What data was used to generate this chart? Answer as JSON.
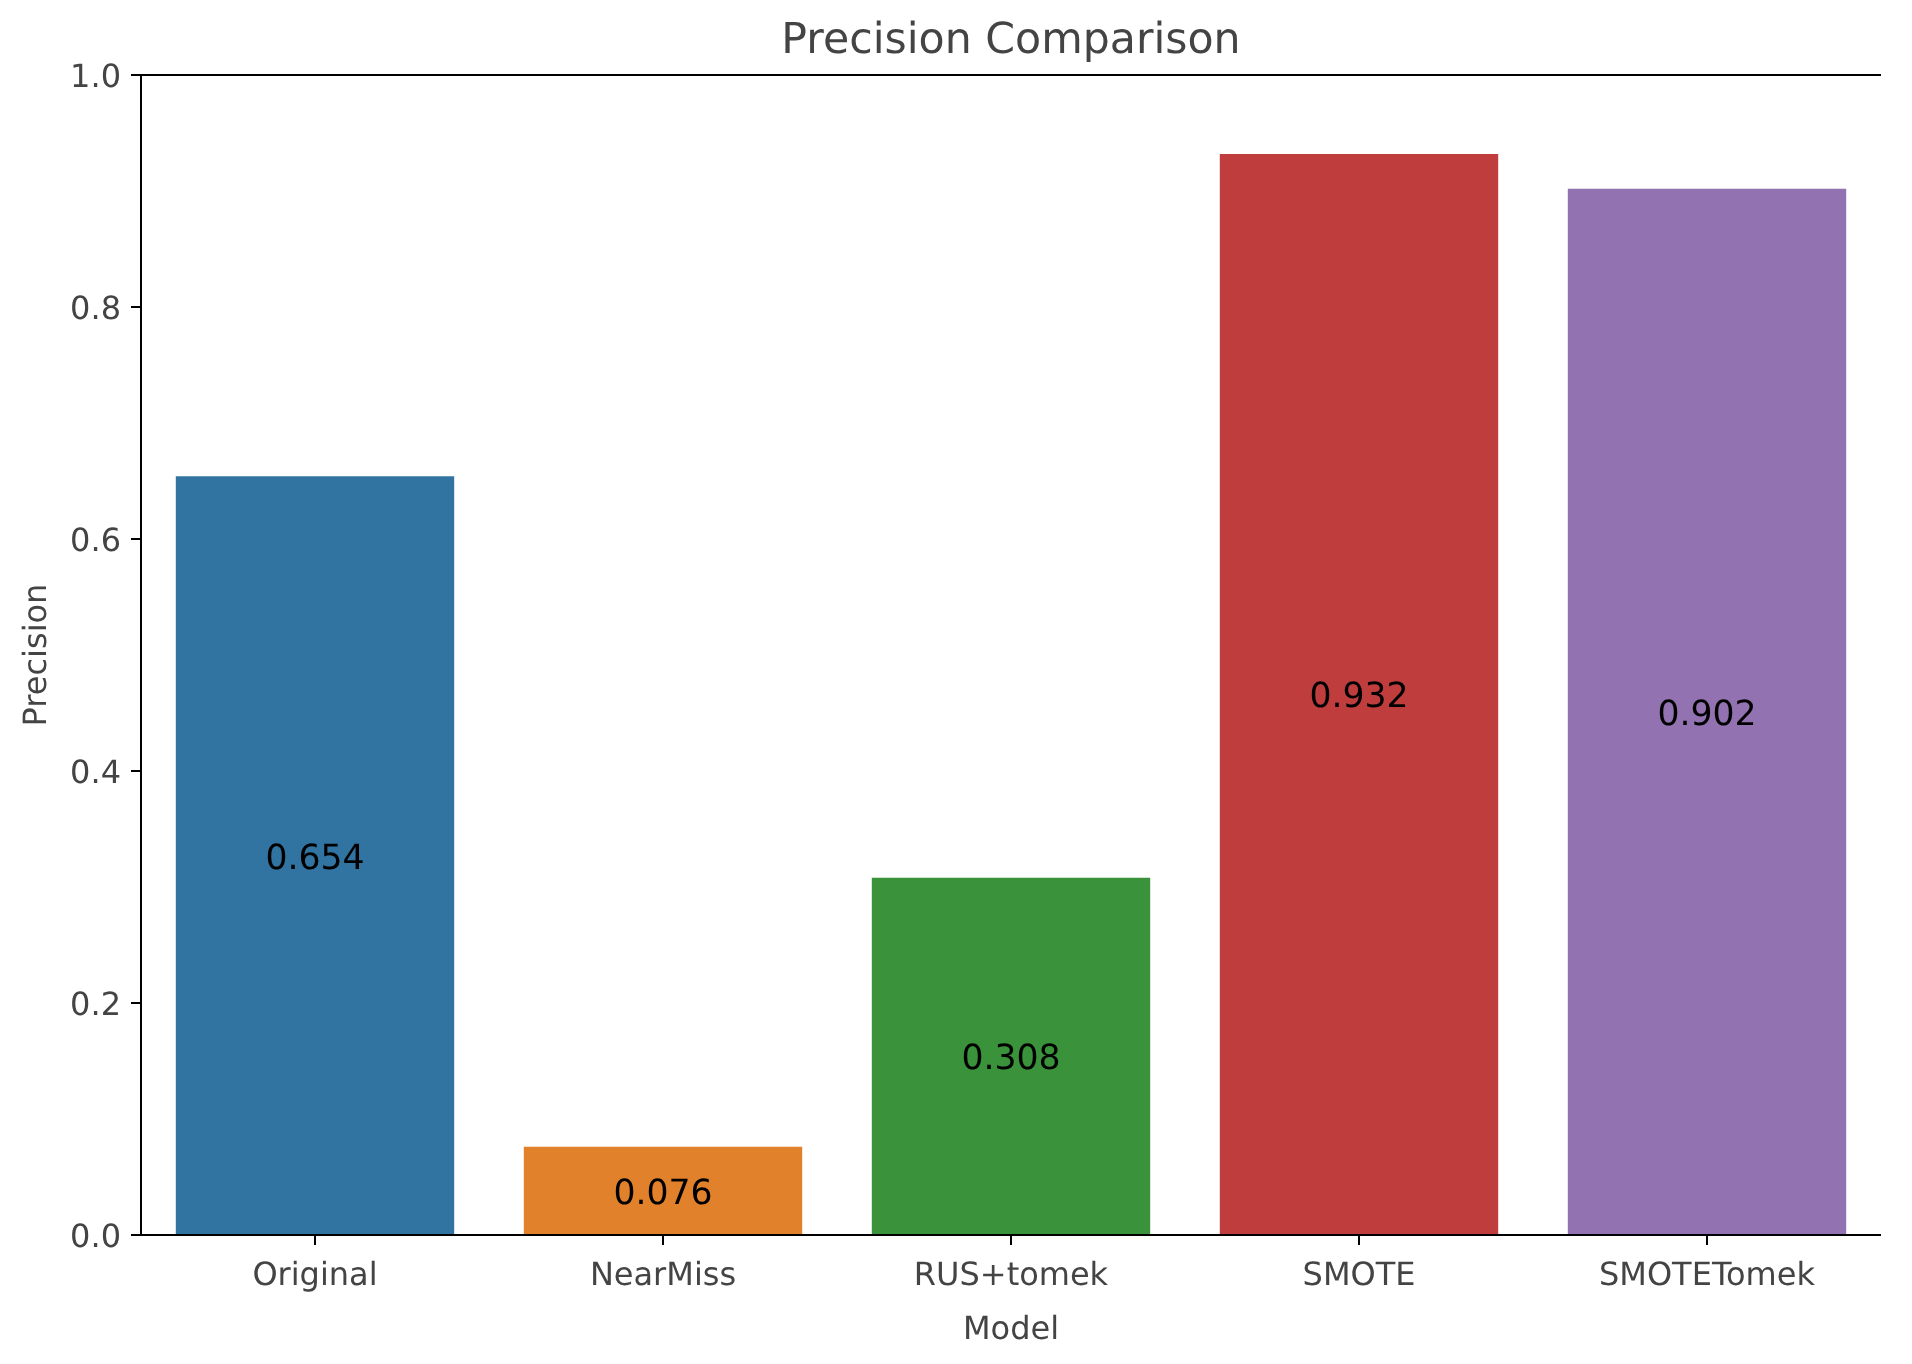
{
  "chart_data": {
    "type": "bar",
    "title": "Precision Comparison",
    "xlabel": "Model",
    "ylabel": "Precision",
    "categories": [
      "Original",
      "NearMiss",
      "RUS+tomek",
      "SMOTE",
      "SMOTETomek"
    ],
    "values": [
      0.654,
      0.076,
      0.308,
      0.932,
      0.902
    ],
    "colors": [
      "#3274a1",
      "#e1812c",
      "#3a923a",
      "#c03d3e",
      "#9372b2"
    ],
    "ylim": [
      0,
      1.0
    ],
    "yticks": [
      {
        "value": 0,
        "label": "0.0"
      },
      {
        "value": 0.2,
        "label": "0.2"
      },
      {
        "value": 0.4,
        "label": "0.4"
      },
      {
        "value": 0.6,
        "label": "0.6"
      },
      {
        "value": 0.8,
        "label": "0.8"
      },
      {
        "value": 1.0,
        "label": "1.0"
      }
    ],
    "data_labels": true,
    "grid": false
  }
}
